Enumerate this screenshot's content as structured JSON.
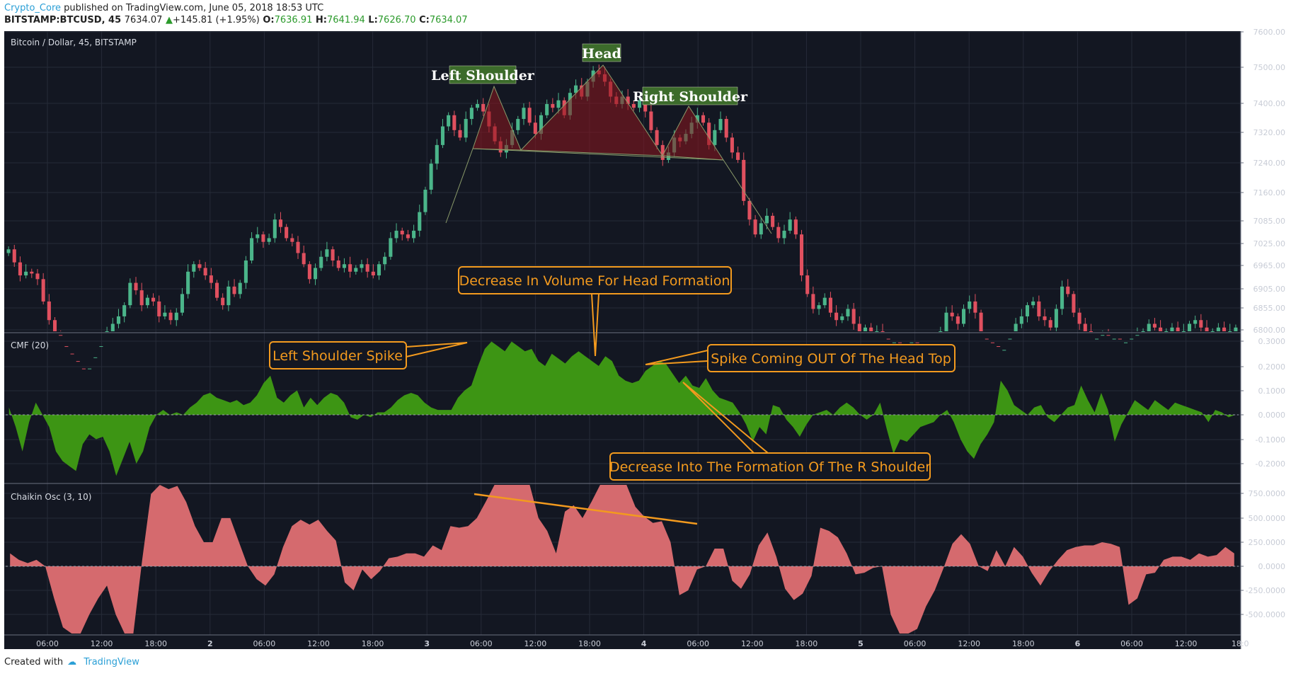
{
  "header": {
    "author": "Crypto_Core",
    "published": "published on TradingView.com, June 05, 2018 18:53 UTC",
    "symbol": "BITSTAMP:BTCUSD, 45",
    "last": "7634.07",
    "change": "+145.81 (+1.95%)",
    "o_label": "O:",
    "o": "7636.91",
    "h_label": "H:",
    "h": "7641.94",
    "l_label": "L:",
    "l": "7626.70",
    "c_label": "C:",
    "c": "7634.07"
  },
  "footer": {
    "created_with": "Created with",
    "brand": "TradingView"
  },
  "colors": {
    "background": "#131722",
    "up": "#4bb58a",
    "down": "#e0505f",
    "cmf": "#3d9514",
    "chaikin": "#d56a6e",
    "annotation": "#f39a1e",
    "label_bg": "#3c6b2b"
  },
  "panes": {
    "price_title": "Bitcoin / Dollar, 45, BITSTAMP",
    "cmf_title": "CMF (20)",
    "chaikin_title": "Chaikin Osc (3, 10)"
  },
  "annotations": {
    "left_shoulder": "Left Shoulder",
    "head": "Head",
    "right_shoulder": "Right Shoulder",
    "volume": "Decrease In Volume For Head Formation",
    "ls_spike": "Left Shoulder Spike",
    "spike_out": "Spike Coming OUT Of The Head Top",
    "r_shoulder": "Decrease Into The Formation Of The R Shoulder"
  },
  "chart_data": [
    {
      "type": "candlestick",
      "title": "Bitcoin / Dollar, 45, BITSTAMP",
      "x_ticks": [
        "06:00",
        "12:00",
        "18:00",
        "2",
        "06:00",
        "12:00",
        "18:00",
        "3",
        "06:00",
        "12:00",
        "18:00",
        "4",
        "06:00",
        "12:00",
        "18:00",
        "5",
        "06:00",
        "12:00",
        "18:00",
        "6",
        "06:00",
        "12:00",
        "18:0"
      ],
      "y_ticks": [
        "7600.00",
        "7500.00",
        "7400.00",
        "7320.00",
        "7240.00",
        "7160.00",
        "7085.00",
        "7025.00",
        "6965.00",
        "6905.00",
        "6855.00",
        "6800.00"
      ],
      "close": [
        7020,
        6985,
        6950,
        6960,
        6955,
        6940,
        6880,
        6830,
        6790,
        6760,
        6740,
        6720,
        6700,
        6690,
        6700,
        6730,
        6760,
        6800,
        6820,
        6840,
        6870,
        6930,
        6910,
        6870,
        6890,
        6880,
        6840,
        6850,
        6830,
        6850,
        6900,
        6960,
        6980,
        6970,
        6950,
        6930,
        6890,
        6870,
        6920,
        6900,
        6930,
        6990,
        7050,
        7060,
        7040,
        7050,
        7100,
        7080,
        7050,
        7040,
        7010,
        6980,
        6940,
        6970,
        7000,
        7020,
        6990,
        6970,
        6980,
        6960,
        6970,
        6980,
        6960,
        6950,
        6980,
        7000,
        7050,
        7070,
        7060,
        7050,
        7070,
        7120,
        7180,
        7250,
        7300,
        7350,
        7380,
        7340,
        7320,
        7370,
        7400,
        7410,
        7390,
        7350,
        7310,
        7280,
        7300,
        7340,
        7370,
        7400,
        7360,
        7330,
        7380,
        7410,
        7400,
        7420,
        7380,
        7440,
        7460,
        7430,
        7470,
        7500,
        7490,
        7470,
        7430,
        7410,
        7430,
        7410,
        7400,
        7420,
        7390,
        7340,
        7300,
        7260,
        7280,
        7320,
        7310,
        7330,
        7360,
        7380,
        7360,
        7300,
        7340,
        7370,
        7320,
        7280,
        7260,
        7150,
        7100,
        7060,
        7090,
        7110,
        7080,
        7050,
        7070,
        7100,
        7060,
        6950,
        6900,
        6860,
        6870,
        6890,
        6850,
        6830,
        6840,
        6860,
        6820,
        6800,
        6810,
        6790,
        6800,
        6780,
        6760,
        6770,
        6760,
        6750,
        6770,
        6760,
        6740,
        6730,
        6760,
        6800,
        6850,
        6840,
        6820,
        6860,
        6880,
        6850,
        6780,
        6770,
        6760,
        6740,
        6750,
        6780,
        6820,
        6840,
        6870,
        6880,
        6840,
        6830,
        6810,
        6860,
        6920,
        6900,
        6850,
        6820,
        6800,
        6770,
        6780,
        6790,
        6770,
        6780,
        6760,
        6770,
        6780,
        6790,
        6800,
        6820,
        6810,
        6790,
        6800,
        6810,
        6790,
        6800,
        6820,
        6830,
        6810,
        6795,
        6800,
        6810,
        6790,
        6800,
        6810
      ],
      "ylim": [
        6800,
        7600
      ]
    },
    {
      "type": "area",
      "title": "CMF (20)",
      "y_ticks": [
        "0.3000",
        "0.2000",
        "0.1000",
        "0.0000",
        "-0.1000",
        "-0.2000"
      ],
      "values": [
        0.03,
        -0.05,
        -0.15,
        -0.03,
        0.05,
        0,
        -0.05,
        -0.15,
        -0.19,
        -0.21,
        -0.23,
        -0.12,
        -0.08,
        -0.1,
        -0.09,
        -0.15,
        -0.25,
        -0.18,
        -0.11,
        -0.2,
        -0.15,
        -0.05,
        0,
        0.02,
        0,
        0.01,
        0,
        0.03,
        0.05,
        0.08,
        0.09,
        0.07,
        0.06,
        0.05,
        0.06,
        0.04,
        0.05,
        0.08,
        0.13,
        0.16,
        0.07,
        0.05,
        0.08,
        0.1,
        0.03,
        0.07,
        0.04,
        0.07,
        0.09,
        0.08,
        0.05,
        -0.01,
        -0.02,
        0,
        -0.01,
        0.01,
        0.01,
        0.03,
        0.06,
        0.08,
        0.09,
        0.08,
        0.05,
        0.03,
        0.02,
        0.02,
        0.02,
        0.07,
        0.1,
        0.12,
        0.2,
        0.27,
        0.3,
        0.28,
        0.26,
        0.3,
        0.28,
        0.26,
        0.27,
        0.22,
        0.2,
        0.25,
        0.23,
        0.21,
        0.24,
        0.26,
        0.24,
        0.22,
        0.2,
        0.24,
        0.22,
        0.16,
        0.14,
        0.13,
        0.14,
        0.18,
        0.2,
        0.22,
        0.21,
        0.17,
        0.13,
        0.16,
        0.12,
        0.11,
        0.15,
        0.1,
        0.07,
        0.06,
        0.05,
        0.01,
        -0.04,
        -0.11,
        -0.05,
        -0.08,
        0.04,
        0.03,
        -0.02,
        -0.05,
        -0.09,
        -0.04,
        0,
        0.01,
        0.02,
        0,
        0.03,
        0.05,
        0.03,
        0,
        -0.02,
        0,
        0.05,
        -0.06,
        -0.16,
        -0.1,
        -0.11,
        -0.08,
        -0.05,
        -0.04,
        -0.03,
        0,
        0.02,
        -0.03,
        -0.1,
        -0.15,
        -0.18,
        -0.12,
        -0.08,
        -0.03,
        0.14,
        0.1,
        0.04,
        0.02,
        0,
        0.03,
        0.04,
        -0.01,
        -0.03,
        0,
        0.03,
        0.04,
        0.12,
        0.06,
        0.01,
        0.09,
        0.02,
        -0.11,
        -0.04,
        0.01,
        0.06,
        0.04,
        0.02,
        0.06,
        0.04,
        0.02,
        0.05,
        0.04,
        0.03,
        0.02,
        0.01,
        -0.03,
        0.02,
        0.01,
        -0.01,
        0
      ],
      "ylim": [
        -0.25,
        0.31
      ]
    },
    {
      "type": "area",
      "title": "Chaikin Osc (3, 10)",
      "y_ticks": [
        "750.0000",
        "500.0000",
        "250.0000",
        "0.0000",
        "-250.0000",
        "-500.0000"
      ],
      "values": [
        80,
        40,
        20,
        40,
        0,
        -200,
        -380,
        -480,
        -520,
        -300,
        -200,
        -120,
        -300,
        -550,
        -460,
        40,
        450,
        620,
        480,
        500,
        400,
        250,
        150,
        150,
        300,
        300,
        150,
        0,
        -80,
        -120,
        -50,
        120,
        250,
        290,
        260,
        290,
        220,
        160,
        -100,
        -150,
        -20,
        -80,
        -30,
        50,
        60,
        80,
        80,
        60,
        130,
        100,
        250,
        240,
        250,
        300,
        400,
        580,
        750,
        740,
        680,
        530,
        300,
        220,
        80,
        340,
        380,
        300,
        400,
        610,
        560,
        590,
        560,
        370,
        310,
        270,
        280,
        150,
        -180,
        -150,
        -20,
        0,
        110,
        110,
        -90,
        -140,
        -50,
        130,
        210,
        60,
        -140,
        -210,
        -170,
        -60,
        240,
        220,
        180,
        80,
        -50,
        -40,
        -10,
        0,
        -300,
        -580,
        -620,
        -390,
        -250,
        -150,
        -10,
        140,
        200,
        140,
        0,
        -30,
        100,
        0,
        120,
        60,
        -40,
        -120,
        -30,
        40,
        100,
        120,
        130,
        130,
        150,
        140,
        120,
        -240,
        -200,
        -50,
        -40,
        40,
        60,
        60,
        40,
        80,
        60,
        70,
        120,
        80
      ]
    }
  ]
}
